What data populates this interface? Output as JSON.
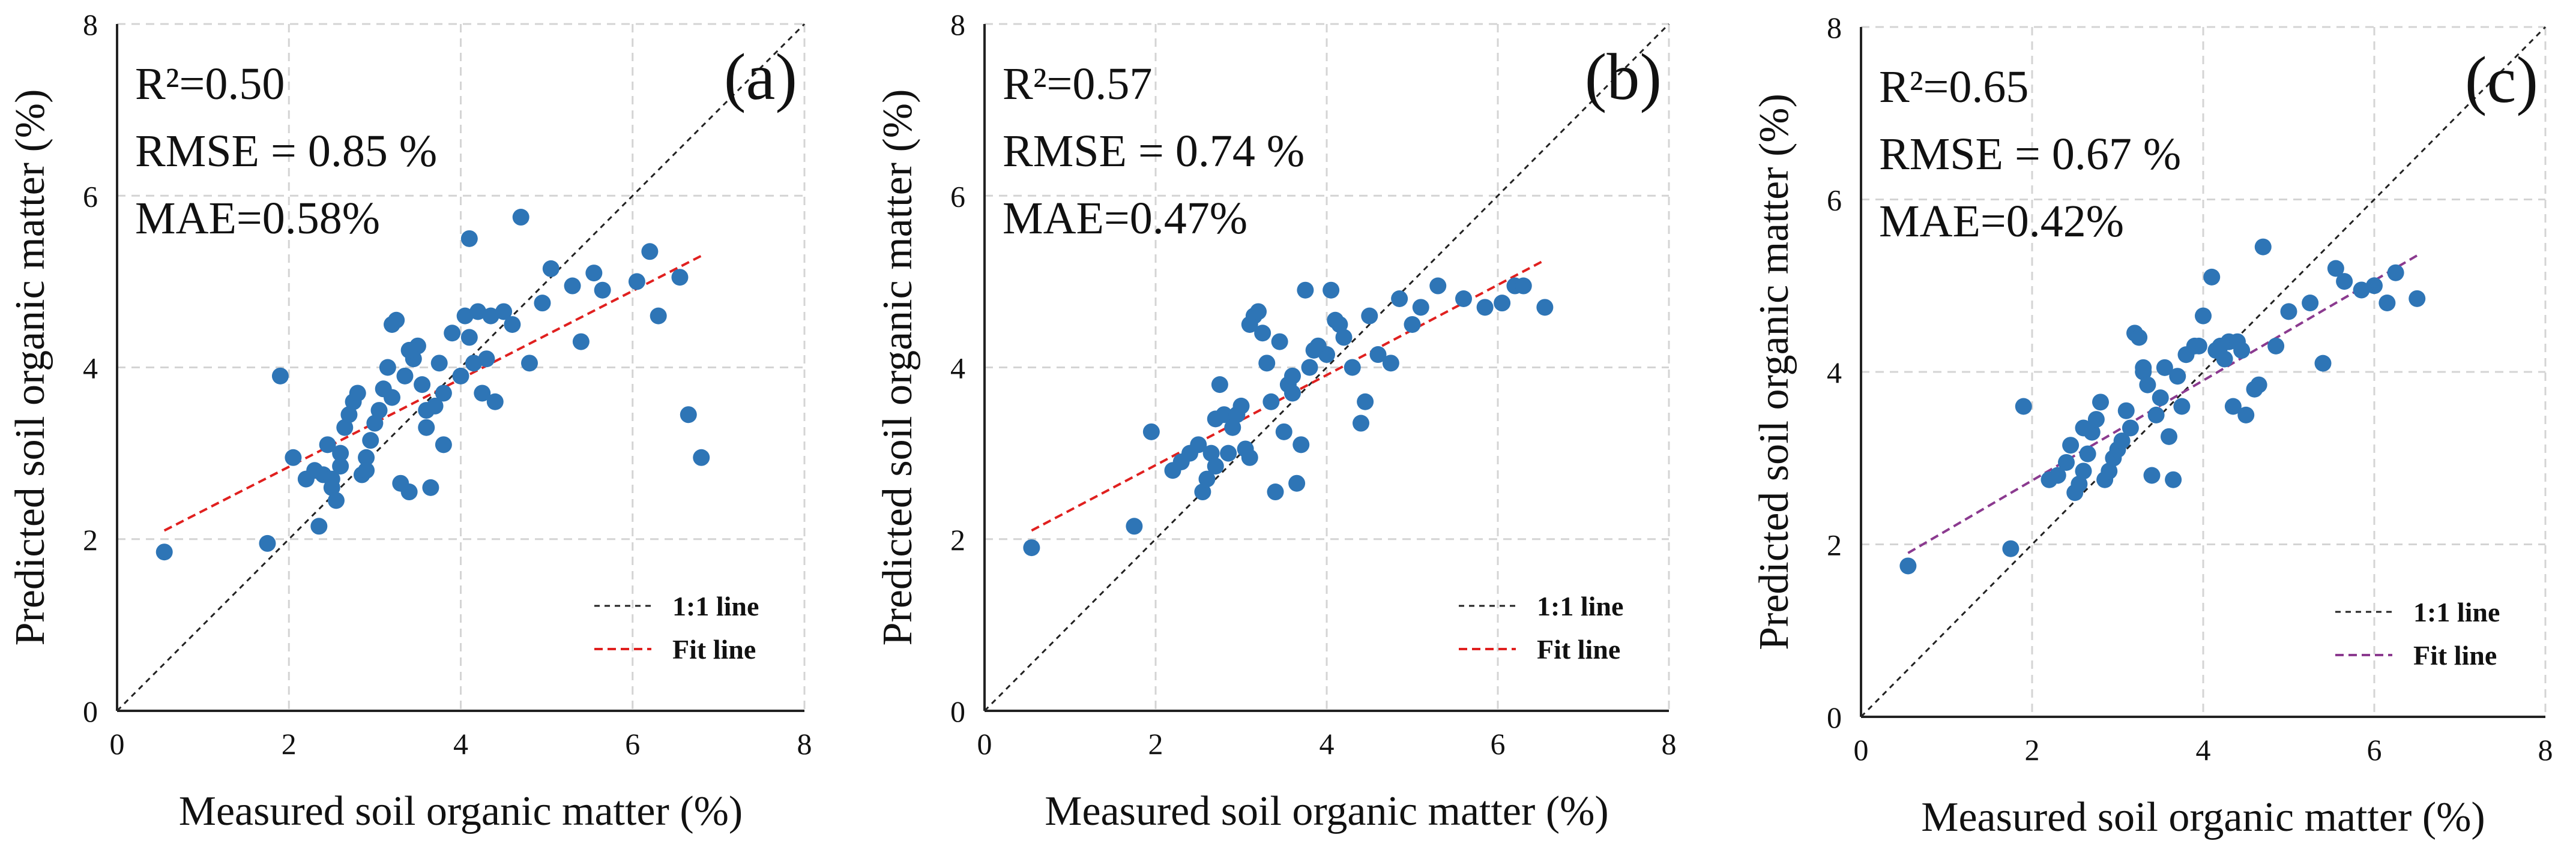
{
  "figure": {
    "panels": [
      {
        "tag": "(a)",
        "stats": [
          "R²=0.50",
          "RMSE = 0.85 %",
          "MAE=0.58%"
        ]
      },
      {
        "tag": "(b)",
        "stats": [
          "R²=0.57",
          "RMSE = 0.74 %",
          "MAE=0.47%"
        ]
      },
      {
        "tag": "(c)",
        "stats": [
          "R²=0.65",
          "RMSE = 0.67 %",
          "MAE=0.42%"
        ]
      }
    ]
  },
  "colors": {
    "points": "#2e75b6",
    "fit_line_a": "#e0201f",
    "fit_line_b": "#e0201f",
    "fit_line_c": "#8b3a8f",
    "one_to_one_line": "#222222"
  },
  "chart_data": [
    {
      "type": "scatter",
      "title": "",
      "xlabel": "Measured soil organic matter (%)",
      "ylabel": "Predicted soil organic matter (%)",
      "xlim": [
        0,
        8
      ],
      "ylim": [
        0,
        8
      ],
      "xticks": [
        0,
        2,
        4,
        6,
        8
      ],
      "yticks": [
        0,
        2,
        4,
        6,
        8
      ],
      "grid": true,
      "legend": {
        "placement": "bottom-right",
        "entries": [
          "1:1 line",
          "Fit line"
        ]
      },
      "series": [
        {
          "name": "1:1 line",
          "kind": "line",
          "x": [
            0,
            8
          ],
          "y": [
            0,
            8
          ]
        },
        {
          "name": "Fit line",
          "kind": "line",
          "x": [
            0.55,
            6.8
          ],
          "y": [
            2.1,
            5.3
          ]
        }
      ],
      "points": {
        "x": [
          0.55,
          1.75,
          1.9,
          2.05,
          2.2,
          2.3,
          2.35,
          2.4,
          2.45,
          2.5,
          2.55,
          2.6,
          2.6,
          2.65,
          2.7,
          2.75,
          2.8,
          2.85,
          2.9,
          2.95,
          3.0,
          3.05,
          3.1,
          3.15,
          3.2,
          3.25,
          3.3,
          3.35,
          3.4,
          3.45,
          3.5,
          3.55,
          3.6,
          3.65,
          3.7,
          3.75,
          3.8,
          3.9,
          4.0,
          4.05,
          4.1,
          4.15,
          4.2,
          4.25,
          4.3,
          4.4,
          4.5,
          4.6,
          4.7,
          4.8,
          4.95,
          5.05,
          5.3,
          5.4,
          5.55,
          5.65,
          6.05,
          6.2,
          6.3,
          6.55,
          6.65,
          6.8,
          2.9,
          3.2,
          3.4,
          3.6,
          3.8,
          4.1,
          4.35,
          2.5
        ],
        "y": [
          1.85,
          1.95,
          3.9,
          2.95,
          2.7,
          2.8,
          2.15,
          2.75,
          3.1,
          2.6,
          2.45,
          2.85,
          3.0,
          3.3,
          3.45,
          3.6,
          3.7,
          2.75,
          2.95,
          3.15,
          3.35,
          3.5,
          3.75,
          4.0,
          4.5,
          4.55,
          2.65,
          3.9,
          2.55,
          4.1,
          4.25,
          3.8,
          3.3,
          2.6,
          3.55,
          4.05,
          3.1,
          4.4,
          3.9,
          4.6,
          5.5,
          4.05,
          4.65,
          3.7,
          4.1,
          3.6,
          4.65,
          4.5,
          5.75,
          4.05,
          4.75,
          5.15,
          4.95,
          4.3,
          5.1,
          4.9,
          5.0,
          5.35,
          4.6,
          5.05,
          3.45,
          2.95,
          2.8,
          3.65,
          4.2,
          3.5,
          3.7,
          4.35,
          4.6,
          2.7
        ]
      }
    },
    {
      "type": "scatter",
      "title": "",
      "xlabel": "Measured soil organic matter (%)",
      "ylabel": "Predicted soil organic matter (%)",
      "xlim": [
        0,
        8
      ],
      "ylim": [
        0,
        8
      ],
      "xticks": [
        0,
        2,
        4,
        6,
        8
      ],
      "yticks": [
        0,
        2,
        4,
        6,
        8
      ],
      "grid": true,
      "legend": {
        "placement": "bottom-right",
        "entries": [
          "1:1 line",
          "Fit line"
        ]
      },
      "series": [
        {
          "name": "1:1 line",
          "kind": "line",
          "x": [
            0,
            8
          ],
          "y": [
            0,
            8
          ]
        },
        {
          "name": "Fit line",
          "kind": "line",
          "x": [
            0.55,
            6.55
          ],
          "y": [
            2.1,
            5.25
          ]
        }
      ],
      "points": {
        "x": [
          0.55,
          1.75,
          1.95,
          2.2,
          2.3,
          2.4,
          2.5,
          2.55,
          2.6,
          2.65,
          2.7,
          2.75,
          2.8,
          2.85,
          2.9,
          3.0,
          3.05,
          3.1,
          3.15,
          3.2,
          3.25,
          3.3,
          3.35,
          3.4,
          3.45,
          3.5,
          3.55,
          3.6,
          3.65,
          3.7,
          3.75,
          3.8,
          3.9,
          4.0,
          4.05,
          4.1,
          4.2,
          4.3,
          4.4,
          4.45,
          4.5,
          4.6,
          4.75,
          4.85,
          5.0,
          5.1,
          5.3,
          5.6,
          5.85,
          6.05,
          6.2,
          6.3,
          6.55,
          2.7,
          3.1,
          3.6,
          4.15,
          3.85,
          2.95
        ],
        "y": [
          1.9,
          2.15,
          3.25,
          2.8,
          2.9,
          3.0,
          3.1,
          2.55,
          2.7,
          3.0,
          3.4,
          3.8,
          3.45,
          3.0,
          3.3,
          3.55,
          3.05,
          4.5,
          4.6,
          4.65,
          4.4,
          4.05,
          3.6,
          2.55,
          4.3,
          3.25,
          3.8,
          3.9,
          2.65,
          3.1,
          4.9,
          4.0,
          4.25,
          4.15,
          4.9,
          4.55,
          4.35,
          4.0,
          3.35,
          3.6,
          4.6,
          4.15,
          4.05,
          4.8,
          4.5,
          4.7,
          4.95,
          4.8,
          4.7,
          4.75,
          4.95,
          4.95,
          4.7,
          2.85,
          2.95,
          3.7,
          4.5,
          4.2,
          3.45
        ]
      }
    },
    {
      "type": "scatter",
      "title": "",
      "xlabel": "Measured soil organic matter (%)",
      "ylabel": "Predicted soil organic matter (%)",
      "xlim": [
        0,
        8
      ],
      "ylim": [
        0,
        8
      ],
      "xticks": [
        0,
        2,
        4,
        6,
        8
      ],
      "yticks": [
        0,
        2,
        4,
        6,
        8
      ],
      "grid": true,
      "legend": {
        "placement": "bottom-right",
        "entries": [
          "1:1 line",
          "Fit line"
        ]
      },
      "series": [
        {
          "name": "1:1 line",
          "kind": "line",
          "x": [
            0,
            8
          ],
          "y": [
            0,
            8
          ]
        },
        {
          "name": "Fit line",
          "kind": "line",
          "x": [
            0.55,
            6.5
          ],
          "y": [
            1.9,
            5.35
          ]
        }
      ],
      "points": {
        "x": [
          0.55,
          1.75,
          1.9,
          2.2,
          2.3,
          2.4,
          2.45,
          2.5,
          2.55,
          2.6,
          2.65,
          2.7,
          2.75,
          2.8,
          2.85,
          2.9,
          2.95,
          3.0,
          3.05,
          3.1,
          3.15,
          3.2,
          3.25,
          3.3,
          3.35,
          3.4,
          3.45,
          3.5,
          3.55,
          3.6,
          3.65,
          3.7,
          3.75,
          3.8,
          3.9,
          4.0,
          4.1,
          4.15,
          4.2,
          4.25,
          4.3,
          4.35,
          4.4,
          4.45,
          4.5,
          4.6,
          4.7,
          4.85,
          5.0,
          5.25,
          5.4,
          5.55,
          5.65,
          5.85,
          6.0,
          6.15,
          6.25,
          6.5,
          2.6,
          3.3,
          4.65,
          3.95
        ],
        "y": [
          1.75,
          1.95,
          3.6,
          2.75,
          2.8,
          2.95,
          3.15,
          2.6,
          2.7,
          2.85,
          3.05,
          3.3,
          3.45,
          3.65,
          2.75,
          2.85,
          3.0,
          3.1,
          3.2,
          3.55,
          3.35,
          4.45,
          4.4,
          4.0,
          3.85,
          2.8,
          3.5,
          3.7,
          4.05,
          3.25,
          2.75,
          3.95,
          3.6,
          4.2,
          4.3,
          4.65,
          5.1,
          4.25,
          4.3,
          4.15,
          4.35,
          3.6,
          4.35,
          4.25,
          3.5,
          3.8,
          5.45,
          4.3,
          4.7,
          4.8,
          4.1,
          5.2,
          5.05,
          4.95,
          5.0,
          4.8,
          5.15,
          4.85,
          3.35,
          4.05,
          3.85,
          4.3
        ]
      }
    }
  ]
}
